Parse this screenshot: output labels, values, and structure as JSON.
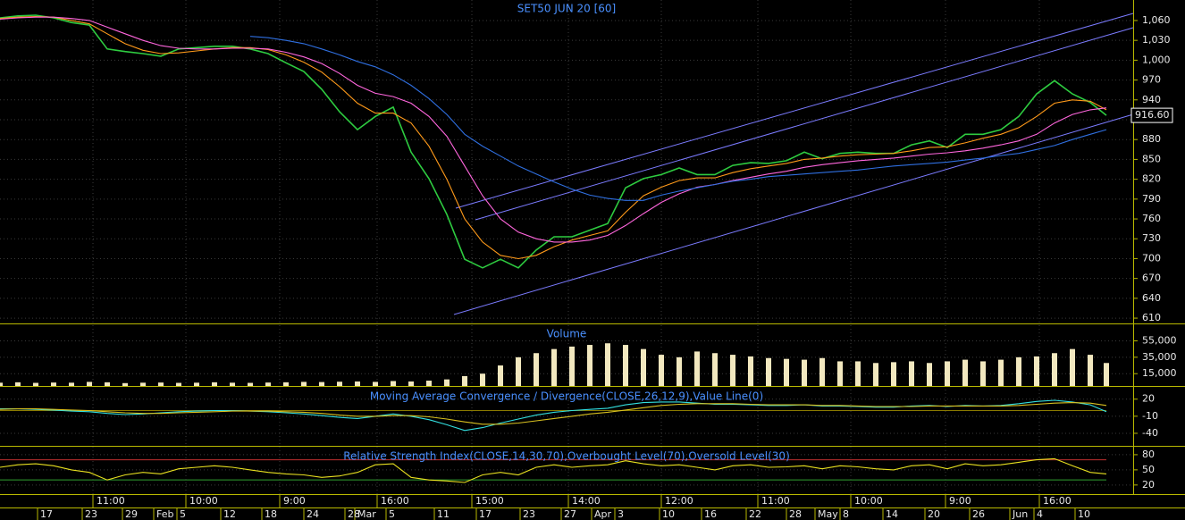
{
  "chart_data": [
    {
      "type": "line",
      "title": "SET50 JUN 20  [60]",
      "x": [
        0,
        20,
        40,
        60,
        80,
        100,
        120,
        140,
        160,
        180,
        200,
        220,
        240,
        260,
        280,
        300,
        320,
        340,
        360,
        380,
        400,
        420,
        440,
        460,
        480,
        500,
        520,
        540,
        560,
        580,
        600,
        620,
        640,
        660,
        680,
        700,
        720,
        740,
        760,
        780,
        800,
        820,
        840,
        860,
        880,
        900,
        920,
        940,
        960,
        980,
        1000,
        1020,
        1040,
        1060,
        1080,
        1100,
        1120,
        1140,
        1160,
        1180,
        1200,
        1220,
        1238
      ],
      "xlim": [
        0,
        1268
      ],
      "series": [
        {
          "color": "#2ecc40",
          "values": [
            1064,
            1067,
            1068,
            1064,
            1057,
            1053,
            1017,
            1013,
            1010,
            1006,
            1017,
            1019,
            1021,
            1021,
            1017,
            1010,
            996,
            983,
            956,
            922,
            895,
            915,
            929,
            861,
            821,
            767,
            699,
            686,
            699,
            686,
            713,
            733,
            733,
            743,
            753,
            807,
            821,
            827,
            837,
            827,
            827,
            841,
            845,
            844,
            848,
            861,
            851,
            859,
            861,
            859,
            859,
            872,
            878,
            868,
            888,
            888,
            895,
            915,
            949,
            969,
            949,
            936,
            916.6
          ]
        },
        {
          "color": "#ff9a1a",
          "values": [
            1063,
            1065,
            1066,
            1065,
            1060,
            1055,
            1040,
            1025,
            1015,
            1010,
            1011,
            1014,
            1017,
            1019,
            1019,
            1016,
            1008,
            997,
            982,
            960,
            935,
            920,
            920,
            905,
            870,
            820,
            760,
            725,
            705,
            700,
            705,
            718,
            728,
            735,
            742,
            770,
            795,
            808,
            818,
            822,
            822,
            830,
            836,
            840,
            844,
            850,
            852,
            855,
            857,
            858,
            859,
            863,
            868,
            869,
            875,
            882,
            888,
            898,
            915,
            935,
            940,
            938,
            925
          ]
        },
        {
          "color": "#ff66dd",
          "values": [
            1062,
            1064,
            1065,
            1065,
            1063,
            1060,
            1050,
            1040,
            1030,
            1022,
            1018,
            1017,
            1017,
            1018,
            1018,
            1017,
            1012,
            1005,
            995,
            980,
            962,
            950,
            945,
            935,
            915,
            885,
            840,
            795,
            760,
            740,
            730,
            725,
            725,
            728,
            735,
            750,
            768,
            785,
            798,
            808,
            812,
            818,
            823,
            828,
            832,
            838,
            842,
            845,
            848,
            850,
            852,
            855,
            858,
            860,
            863,
            867,
            872,
            878,
            888,
            905,
            918,
            925,
            928
          ]
        },
        {
          "color": "#2f6fe0",
          "values": [
            null,
            null,
            null,
            null,
            null,
            null,
            null,
            null,
            null,
            null,
            null,
            null,
            null,
            null,
            1036,
            1034,
            1030,
            1025,
            1017,
            1008,
            998,
            990,
            978,
            962,
            942,
            918,
            888,
            870,
            855,
            840,
            828,
            816,
            805,
            796,
            791,
            788,
            788,
            796,
            802,
            807,
            812,
            817,
            820,
            824,
            826,
            828,
            830,
            832,
            834,
            837,
            840,
            842,
            844,
            846,
            849,
            852,
            856,
            859,
            865,
            871,
            880,
            888,
            895
          ]
        }
      ],
      "ylim": [
        602,
        1091
      ],
      "yticks": [
        610,
        640,
        670,
        700,
        730,
        760,
        790,
        820,
        850,
        880,
        910,
        940,
        970,
        {
          "value": 1000,
          "label": "1,000"
        },
        {
          "value": 1030,
          "label": "1,030"
        },
        {
          "value": 1060,
          "label": "1,060"
        }
      ],
      "last_price": {
        "value": 916.6,
        "label": "916.60"
      },
      "time_ticks": [
        {
          "value": 104,
          "label": "11:00"
        },
        {
          "value": 208,
          "label": "10:00"
        },
        {
          "value": 313,
          "label": "9:00"
        },
        {
          "value": 422,
          "label": "16:00"
        },
        {
          "value": 528,
          "label": "15:00"
        },
        {
          "value": 636,
          "label": "14:00"
        },
        {
          "value": 740,
          "label": "12:00"
        },
        {
          "value": 848,
          "label": "11:00"
        },
        {
          "value": 952,
          "label": "10:00"
        },
        {
          "value": 1058,
          "label": "9:00"
        },
        {
          "value": 1163,
          "label": "16:00"
        }
      ],
      "xticks": [
        {
          "value": 42,
          "label": "17"
        },
        {
          "value": 92,
          "label": "23"
        },
        {
          "value": 137,
          "label": "29"
        },
        {
          "value": 172,
          "label": "Feb"
        },
        {
          "value": 198,
          "label": "5"
        },
        {
          "value": 247,
          "label": "12"
        },
        {
          "value": 293,
          "label": "18"
        },
        {
          "value": 340,
          "label": "24"
        },
        {
          "value": 386,
          "label": "28"
        },
        {
          "value": 397,
          "label": "Mar"
        },
        {
          "value": 432,
          "label": "5"
        },
        {
          "value": 486,
          "label": "11"
        },
        {
          "value": 533,
          "label": "17"
        },
        {
          "value": 582,
          "label": "23"
        },
        {
          "value": 628,
          "label": "27"
        },
        {
          "value": 662,
          "label": "Apr"
        },
        {
          "value": 688,
          "label": "3"
        },
        {
          "value": 738,
          "label": "10"
        },
        {
          "value": 785,
          "label": "16"
        },
        {
          "value": 835,
          "label": "22"
        },
        {
          "value": 880,
          "label": "28"
        },
        {
          "value": 912,
          "label": "May"
        },
        {
          "value": 940,
          "label": "8"
        },
        {
          "value": 988,
          "label": "14"
        },
        {
          "value": 1035,
          "label": "20"
        },
        {
          "value": 1085,
          "label": "26"
        },
        {
          "value": 1130,
          "label": "Jun"
        },
        {
          "value": 1157,
          "label": "4"
        },
        {
          "value": 1203,
          "label": "10"
        }
      ]
    },
    {
      "type": "bar",
      "title": "Volume",
      "color": "#f2e8bf",
      "values": [
        4000,
        4500,
        3800,
        4200,
        4000,
        5000,
        4500,
        3500,
        4000,
        4200,
        3800,
        4000,
        4500,
        4000,
        3800,
        4200,
        4500,
        5000,
        4800,
        5200,
        5500,
        5000,
        6000,
        5500,
        6500,
        8000,
        12000,
        15000,
        25000,
        35000,
        40000,
        45000,
        48000,
        50000,
        52000,
        50000,
        45000,
        38000,
        35000,
        42000,
        40000,
        38000,
        36000,
        34000,
        33000,
        32000,
        34000,
        30000,
        30000,
        28000,
        29000,
        30000,
        28000,
        30000,
        32000,
        30000,
        32000,
        35000,
        36000,
        40000,
        45000,
        38000,
        28000
      ],
      "ylim": [
        0,
        74000
      ],
      "yticks": [
        {
          "value": 15000,
          "label": "15,000"
        },
        {
          "value": 35000,
          "label": "35,000"
        },
        {
          "value": 55000,
          "label": "55,000"
        }
      ]
    },
    {
      "type": "line",
      "title": "Moving Average Convergence / Divergence(CLOSE,26,12,9),Value Line(0)",
      "series": [
        {
          "color": "#33e0e0",
          "values": [
            3,
            3,
            2,
            1,
            -1,
            -2,
            -5,
            -7,
            -6,
            -4,
            -2,
            -1,
            0,
            0,
            -1,
            -2,
            -4,
            -6,
            -9,
            -12,
            -14,
            -10,
            -6,
            -10,
            -16,
            -25,
            -35,
            -30,
            -22,
            -15,
            -8,
            -3,
            0,
            2,
            4,
            10,
            14,
            15,
            15,
            13,
            11,
            11,
            10,
            9,
            9,
            10,
            8,
            8,
            7,
            6,
            6,
            8,
            9,
            7,
            9,
            8,
            9,
            12,
            16,
            18,
            15,
            10,
            -2
          ]
        },
        {
          "color": "#d8c020",
          "values": [
            2,
            3,
            3,
            2,
            1,
            0,
            -2,
            -4,
            -5,
            -5,
            -4,
            -3,
            -2,
            -1,
            -1,
            -1,
            -2,
            -3,
            -5,
            -8,
            -10,
            -10,
            -9,
            -9,
            -11,
            -15,
            -20,
            -24,
            -24,
            -22,
            -18,
            -14,
            -10,
            -6,
            -3,
            1,
            5,
            9,
            11,
            12,
            12,
            12,
            11,
            10,
            10,
            10,
            9,
            9,
            8,
            7,
            7,
            7,
            8,
            8,
            8,
            8,
            8,
            9,
            11,
            13,
            14,
            13,
            9
          ]
        }
      ],
      "value_line": 0,
      "ylim": [
        -62,
        40
      ],
      "yticks": [
        -40,
        -10,
        20
      ]
    },
    {
      "type": "line",
      "title": "Relative Strength Index(CLOSE,14,30,70),Overbought Level(70),Oversold Level(30)",
      "series": [
        {
          "color": "#e8e020",
          "values": [
            55,
            60,
            62,
            58,
            50,
            45,
            30,
            40,
            45,
            42,
            52,
            55,
            58,
            55,
            50,
            45,
            42,
            40,
            35,
            38,
            45,
            60,
            62,
            35,
            30,
            28,
            25,
            40,
            45,
            40,
            55,
            60,
            55,
            58,
            60,
            68,
            62,
            58,
            60,
            55,
            50,
            58,
            60,
            55,
            56,
            58,
            52,
            58,
            56,
            52,
            50,
            58,
            60,
            52,
            62,
            58,
            60,
            65,
            70,
            72,
            58,
            45,
            42
          ]
        }
      ],
      "levels": [
        {
          "value": 70,
          "color": "#c03030"
        },
        {
          "value": 30,
          "color": "#30a030"
        }
      ],
      "ylim": [
        2,
        94
      ],
      "yticks": [
        20,
        50,
        80
      ]
    }
  ]
}
